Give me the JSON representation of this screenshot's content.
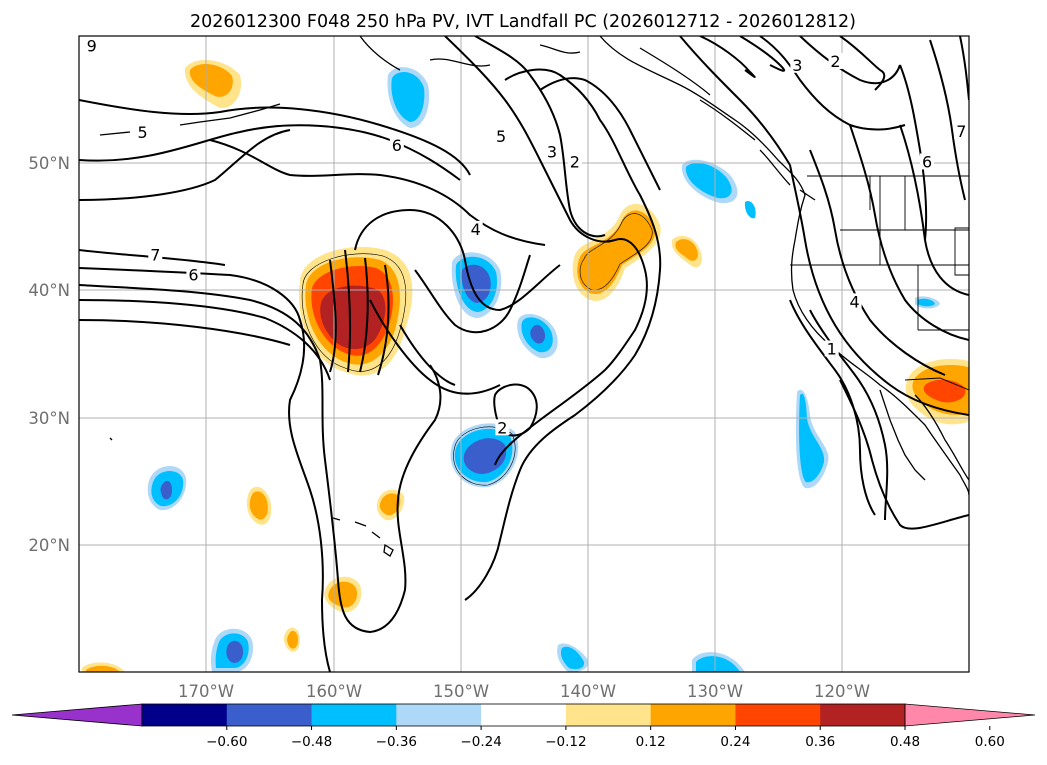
{
  "figure": {
    "title": "2026012300 F048 250 hPa PV, IVT Landfall PC (2026012712 - 2026012812)"
  },
  "map": {
    "lat_labels": [
      "50°N",
      "40°N",
      "30°N",
      "20°N"
    ],
    "lon_labels": [
      "170°W",
      "160°W",
      "150°W",
      "140°W",
      "130°W",
      "120°W"
    ],
    "lat_values": [
      50,
      40,
      30,
      20
    ],
    "lon_values": [
      -170,
      -160,
      -150,
      -140,
      -130,
      -120
    ],
    "extent": {
      "lon_min": -180,
      "lon_max": -110,
      "lat_min": 10,
      "lat_max": 60
    }
  },
  "contour_labels": [
    {
      "text": "5",
      "lon": -175,
      "lat": 52.2
    },
    {
      "text": "6",
      "lon": -155,
      "lat": 51.2
    },
    {
      "text": "5",
      "lon": -146.8,
      "lat": 51.9
    },
    {
      "text": "3",
      "lon": -142.8,
      "lat": 50.7
    },
    {
      "text": "2",
      "lon": -141,
      "lat": 49.9
    },
    {
      "text": "4",
      "lon": -148.8,
      "lat": 44.6
    },
    {
      "text": "7",
      "lon": -174,
      "lat": 42.6
    },
    {
      "text": "6",
      "lon": -171,
      "lat": 41.0
    },
    {
      "text": "2",
      "lon": -146.7,
      "lat": 29.0
    },
    {
      "text": "3",
      "lon": -123.5,
      "lat": 57.5
    },
    {
      "text": "2",
      "lon": -120.5,
      "lat": 57.8
    },
    {
      "text": "6",
      "lon": -113.3,
      "lat": 49.9
    },
    {
      "text": "7",
      "lon": -110.6,
      "lat": 52.3
    },
    {
      "text": "4",
      "lon": -119,
      "lat": 38.9
    },
    {
      "text": "1",
      "lon": -120.8,
      "lat": 35.2
    },
    {
      "text": "9",
      "lon": -179,
      "lat": 59
    }
  ],
  "anomaly_features": [
    {
      "sign": "positive",
      "max_level": 0.48,
      "lon": -158.5,
      "lat": 37.8
    },
    {
      "sign": "positive",
      "max_level": 0.36,
      "lon": -139,
      "lat": 42.5
    },
    {
      "sign": "positive",
      "max_level": 0.36,
      "lon": -113,
      "lat": 32.5
    },
    {
      "sign": "negative",
      "max_level": -0.48,
      "lon": -149,
      "lat": 28.2
    },
    {
      "sign": "negative",
      "max_level": -0.48,
      "lon": -149.1,
      "lat": 40.3
    },
    {
      "sign": "negative",
      "max_level": -0.48,
      "lon": -146,
      "lat": 35.7
    }
  ],
  "colorbar": {
    "ticks": [
      "−0.60",
      "−0.48",
      "−0.36",
      "−0.24",
      "−0.12",
      "0.12",
      "0.24",
      "0.36",
      "0.48",
      "0.60"
    ],
    "colors": [
      "#9932cc",
      "#00008b",
      "#3a5fcd",
      "#00bfff",
      "#add8f7",
      "#ffffff",
      "#ffe48b",
      "#ffa500",
      "#ff4500",
      "#b22222",
      "#ff88aa"
    ]
  }
}
